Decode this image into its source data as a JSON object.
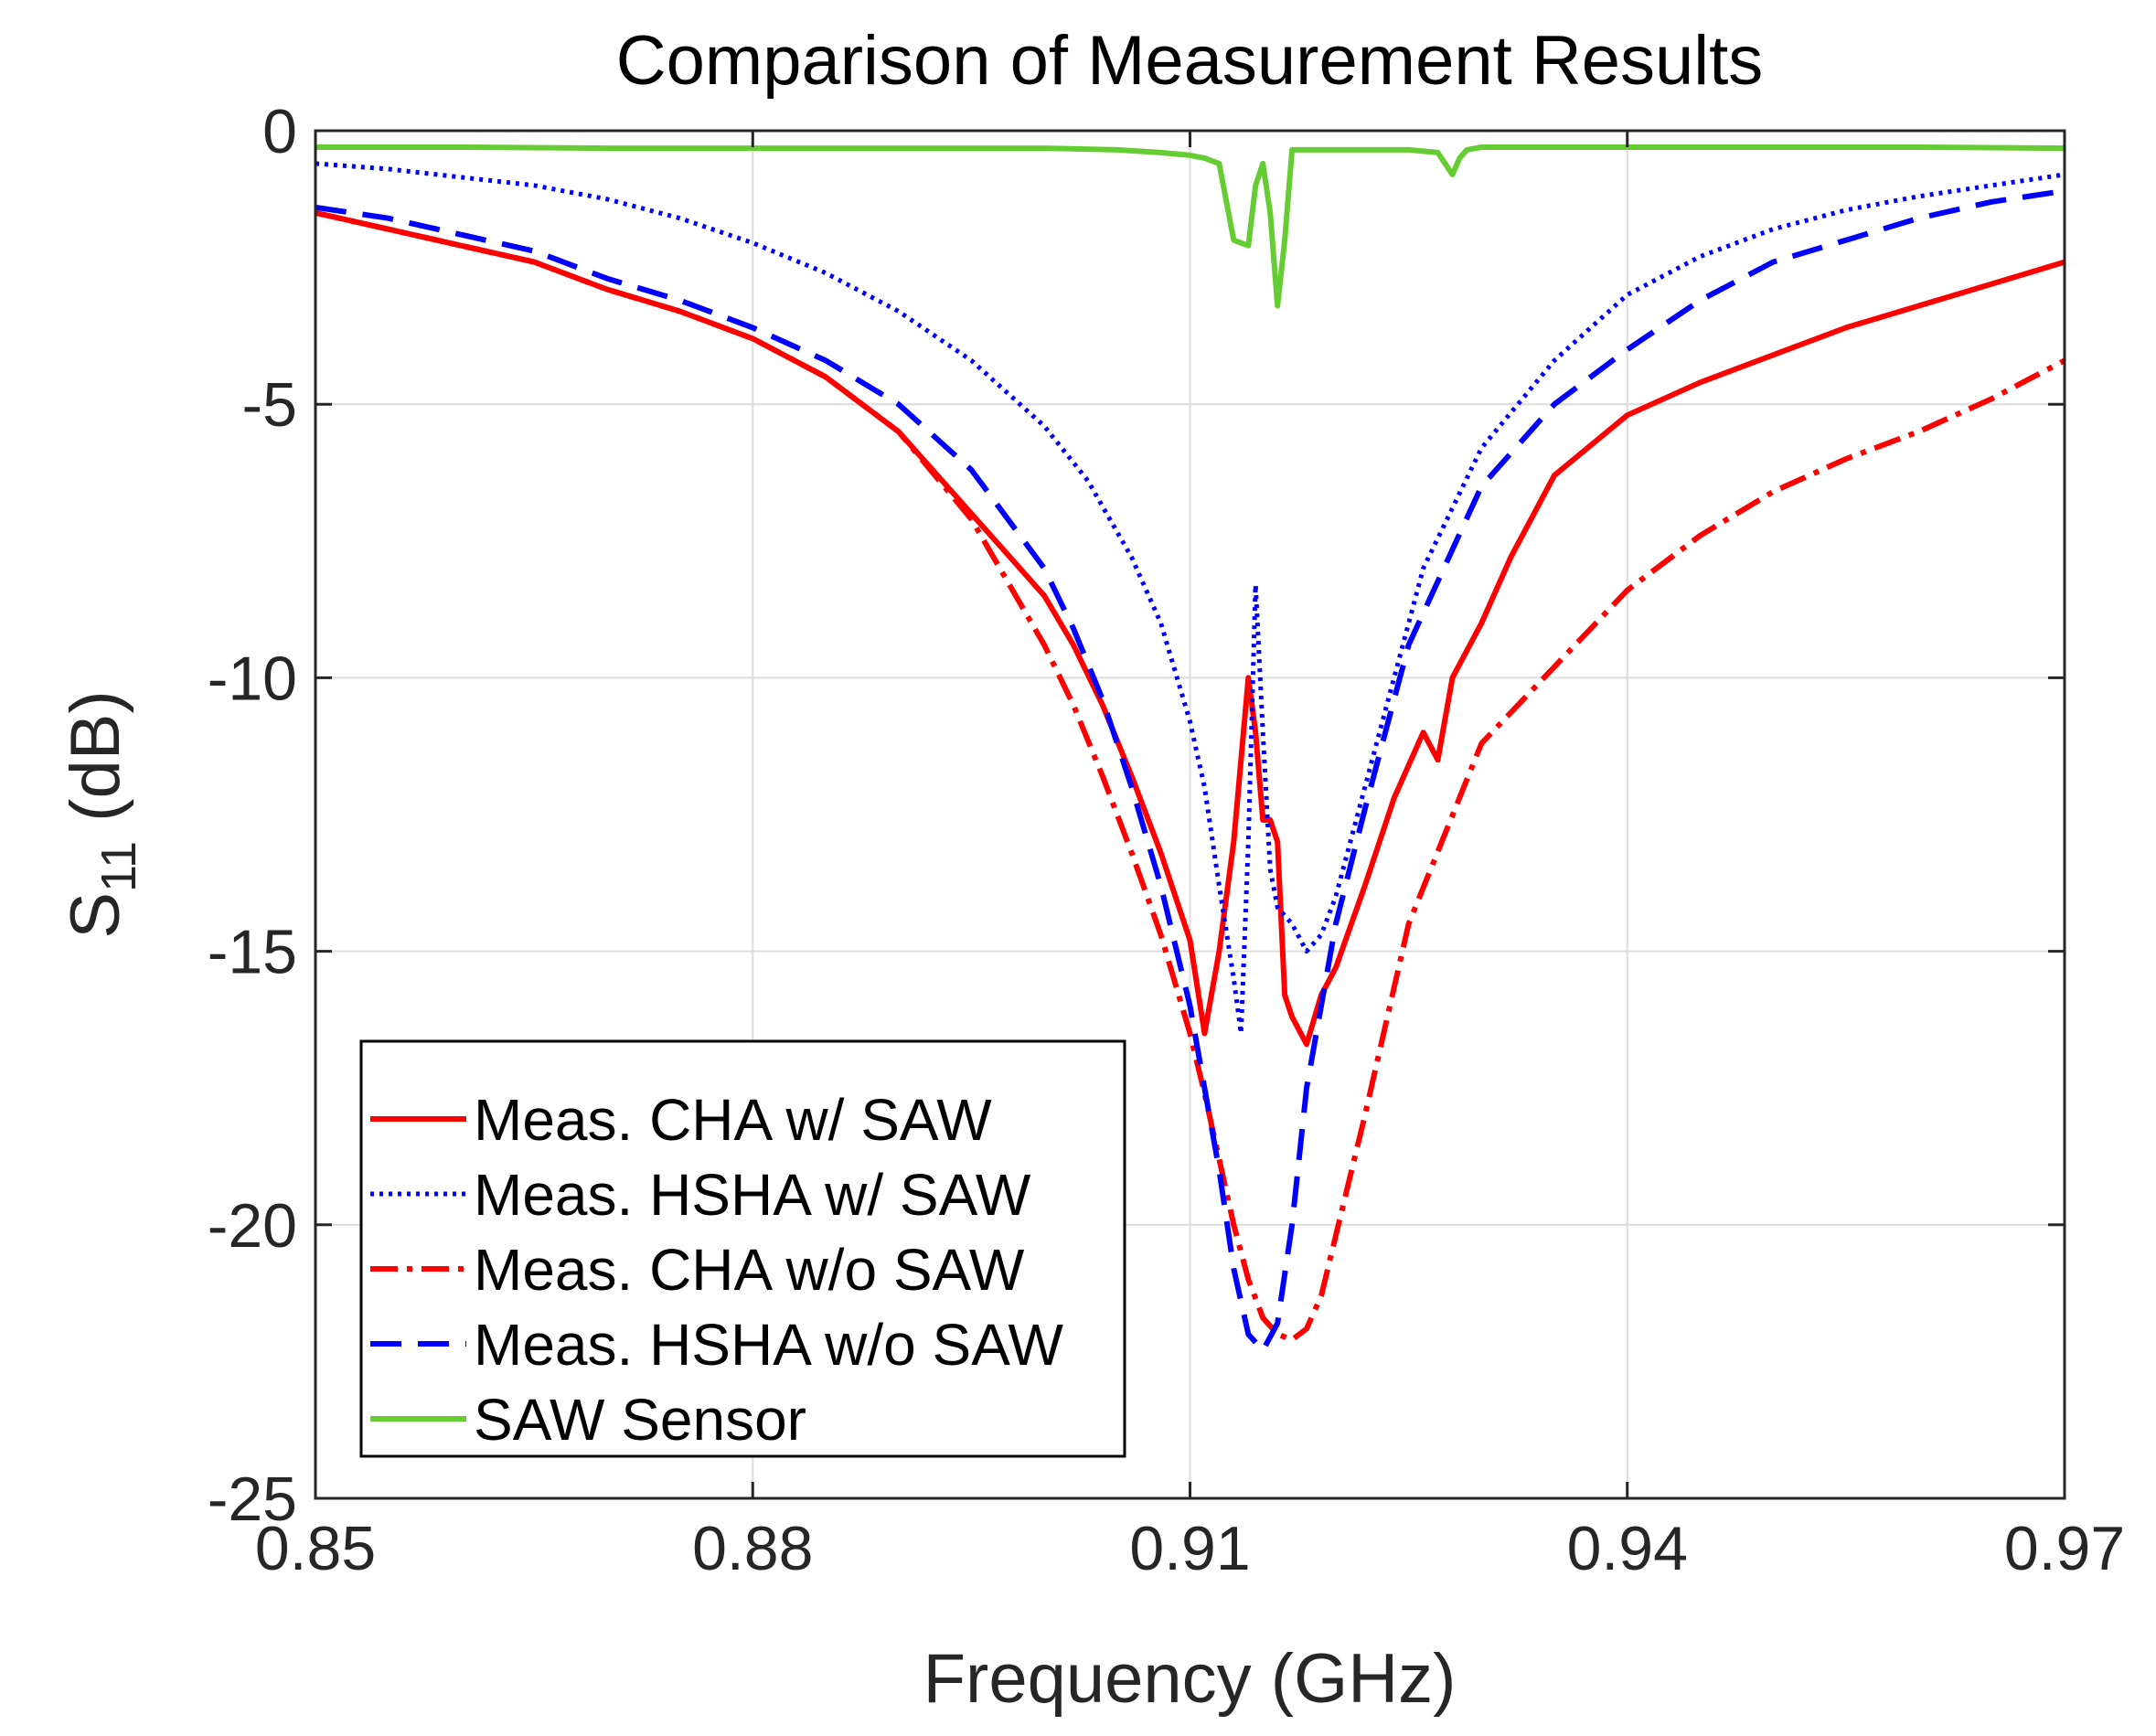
{
  "chart_data": {
    "type": "line",
    "title": "Comparison of Measurement Results",
    "xlabel": "Frequency (GHz)",
    "ylabel_main": "S",
    "ylabel_sub": "11",
    "ylabel_unit": " (dB)",
    "xlim": [
      0.85,
      0.97
    ],
    "ylim": [
      -25,
      0
    ],
    "xticks": [
      0.85,
      0.88,
      0.91,
      0.94,
      0.97
    ],
    "xtick_labels": [
      "0.85",
      "0.88",
      "0.91",
      "0.94",
      "0.97"
    ],
    "yticks": [
      0,
      -5,
      -10,
      -15,
      -20,
      -25
    ],
    "ytick_labels": [
      "0",
      "-5",
      "-10",
      "-15",
      "-20",
      "-25"
    ],
    "grid": true,
    "legend_position": "bottom-left",
    "series": [
      {
        "name": "Meas. CHA w/ SAW",
        "color": "#ff0000",
        "style": "solid",
        "x": [
          0.85,
          0.855,
          0.86,
          0.865,
          0.87,
          0.875,
          0.88,
          0.885,
          0.89,
          0.895,
          0.9,
          0.902,
          0.904,
          0.906,
          0.908,
          0.91,
          0.911,
          0.912,
          0.913,
          0.914,
          0.9145,
          0.915,
          0.9155,
          0.916,
          0.9165,
          0.917,
          0.918,
          0.919,
          0.92,
          0.922,
          0.924,
          0.926,
          0.927,
          0.928,
          0.929,
          0.93,
          0.932,
          0.935,
          0.94,
          0.945,
          0.95,
          0.955,
          0.96,
          0.965,
          0.97
        ],
        "y": [
          -1.5,
          -1.8,
          -2.1,
          -2.4,
          -2.9,
          -3.3,
          -3.8,
          -4.5,
          -5.5,
          -7.0,
          -8.5,
          -9.4,
          -10.5,
          -11.8,
          -13.2,
          -14.8,
          -16.5,
          -15.0,
          -13.0,
          -10.0,
          -11.0,
          -12.6,
          -12.6,
          -13.0,
          -15.8,
          -16.2,
          -16.7,
          -15.8,
          -15.3,
          -13.8,
          -12.2,
          -11.0,
          -11.5,
          -10.0,
          -9.5,
          -9.0,
          -7.8,
          -6.3,
          -5.2,
          -4.6,
          -4.1,
          -3.6,
          -3.2,
          -2.8,
          -2.4
        ]
      },
      {
        "name": "Meas. HSHA w/ SAW",
        "color": "#0000ff",
        "style": "dotted",
        "x": [
          0.85,
          0.855,
          0.86,
          0.865,
          0.87,
          0.875,
          0.88,
          0.885,
          0.89,
          0.895,
          0.9,
          0.903,
          0.906,
          0.908,
          0.91,
          0.911,
          0.912,
          0.913,
          0.9135,
          0.914,
          0.9145,
          0.915,
          0.9155,
          0.916,
          0.917,
          0.918,
          0.919,
          0.92,
          0.922,
          0.924,
          0.926,
          0.93,
          0.935,
          0.94,
          0.945,
          0.95,
          0.955,
          0.96,
          0.965,
          0.97
        ],
        "y": [
          -0.6,
          -0.7,
          -0.85,
          -1.0,
          -1.25,
          -1.6,
          -2.05,
          -2.6,
          -3.3,
          -4.2,
          -5.4,
          -6.4,
          -7.8,
          -9.0,
          -10.8,
          -12.0,
          -13.8,
          -15.5,
          -16.5,
          -13.0,
          -8.3,
          -11.0,
          -13.5,
          -14.2,
          -14.5,
          -15.0,
          -14.7,
          -14.0,
          -12.0,
          -10.0,
          -8.0,
          -5.8,
          -4.2,
          -3.0,
          -2.3,
          -1.8,
          -1.45,
          -1.2,
          -1.0,
          -0.8
        ]
      },
      {
        "name": "Meas. CHA w/o SAW",
        "color": "#ff0000",
        "style": "dashdot",
        "x": [
          0.85,
          0.855,
          0.86,
          0.865,
          0.87,
          0.875,
          0.88,
          0.885,
          0.89,
          0.895,
          0.9,
          0.902,
          0.904,
          0.906,
          0.908,
          0.91,
          0.911,
          0.912,
          0.913,
          0.914,
          0.915,
          0.916,
          0.917,
          0.918,
          0.919,
          0.92,
          0.922,
          0.925,
          0.93,
          0.935,
          0.94,
          0.945,
          0.95,
          0.955,
          0.96,
          0.965,
          0.97
        ],
        "y": [
          -1.5,
          -1.8,
          -2.1,
          -2.4,
          -2.9,
          -3.3,
          -3.8,
          -4.5,
          -5.5,
          -7.1,
          -9.4,
          -10.5,
          -11.8,
          -13.2,
          -14.7,
          -16.5,
          -17.6,
          -18.8,
          -20.0,
          -21.0,
          -21.7,
          -22.0,
          -22.1,
          -21.9,
          -21.3,
          -20.2,
          -18.0,
          -14.5,
          -11.2,
          -9.8,
          -8.4,
          -7.4,
          -6.6,
          -6.0,
          -5.5,
          -4.9,
          -4.2
        ]
      },
      {
        "name": "Meas. HSHA w/o SAW",
        "color": "#0000ff",
        "style": "dashed",
        "x": [
          0.85,
          0.855,
          0.86,
          0.865,
          0.87,
          0.875,
          0.88,
          0.885,
          0.89,
          0.895,
          0.9,
          0.902,
          0.904,
          0.906,
          0.908,
          0.91,
          0.911,
          0.912,
          0.913,
          0.914,
          0.915,
          0.916,
          0.917,
          0.918,
          0.919,
          0.92,
          0.922,
          0.925,
          0.93,
          0.935,
          0.94,
          0.945,
          0.95,
          0.955,
          0.96,
          0.965,
          0.97
        ],
        "y": [
          -1.4,
          -1.6,
          -1.9,
          -2.2,
          -2.7,
          -3.1,
          -3.6,
          -4.2,
          -5.0,
          -6.2,
          -8.0,
          -9.1,
          -10.4,
          -12.0,
          -13.8,
          -16.0,
          -17.5,
          -19.0,
          -20.8,
          -22.0,
          -22.3,
          -21.8,
          -20.0,
          -17.5,
          -16.0,
          -14.5,
          -12.4,
          -9.4,
          -6.5,
          -5.0,
          -4.0,
          -3.1,
          -2.4,
          -2.0,
          -1.6,
          -1.3,
          -1.1
        ]
      },
      {
        "name": "SAW Sensor",
        "color": "#66cc33",
        "style": "solid",
        "x": [
          0.85,
          0.86,
          0.87,
          0.88,
          0.89,
          0.9,
          0.905,
          0.908,
          0.91,
          0.911,
          0.912,
          0.913,
          0.914,
          0.9145,
          0.915,
          0.9155,
          0.916,
          0.9165,
          0.917,
          0.92,
          0.925,
          0.927,
          0.9275,
          0.928,
          0.9285,
          0.929,
          0.93,
          0.94,
          0.95,
          0.96,
          0.97
        ],
        "y": [
          -0.3,
          -0.3,
          -0.32,
          -0.32,
          -0.32,
          -0.32,
          -0.35,
          -0.4,
          -0.45,
          -0.5,
          -0.6,
          -2.0,
          -2.1,
          -1.0,
          -0.6,
          -1.5,
          -3.2,
          -2.0,
          -0.35,
          -0.35,
          -0.35,
          -0.4,
          -0.6,
          -0.8,
          -0.5,
          -0.35,
          -0.3,
          -0.3,
          -0.3,
          -0.3,
          -0.32
        ]
      }
    ]
  }
}
